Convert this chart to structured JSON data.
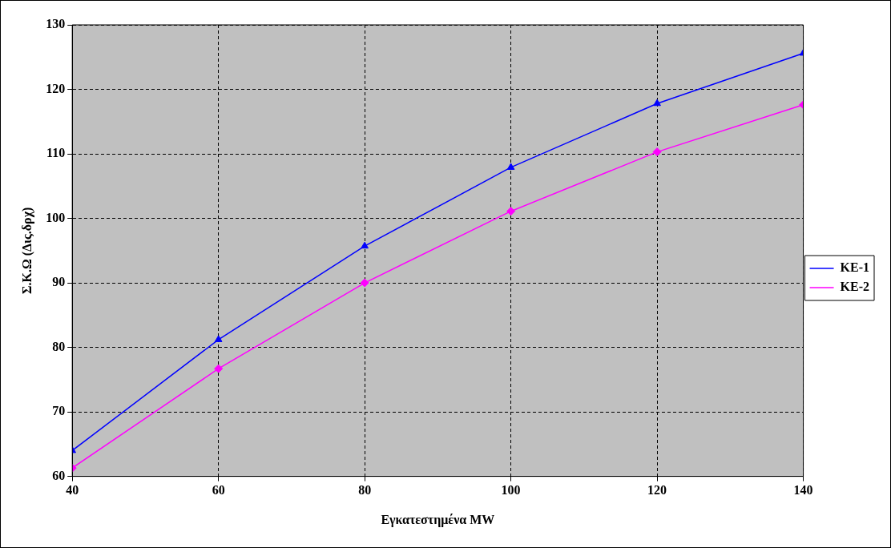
{
  "chart_data": {
    "type": "line",
    "xlabel": "Εγκατεστημένα MW",
    "ylabel": "Σ.Κ.Ω (Δις.δρχ)",
    "x": [
      40,
      60,
      80,
      100,
      120,
      140
    ],
    "series": [
      {
        "name": "KE-1",
        "color": "#0000ff",
        "marker": "triangle",
        "values": [
          64.0,
          81.2,
          95.7,
          107.9,
          117.8,
          125.6
        ]
      },
      {
        "name": "KE-2",
        "color": "#ff00ff",
        "marker": "diamond",
        "values": [
          61.3,
          76.7,
          90.0,
          101.1,
          110.3,
          117.6
        ]
      }
    ],
    "xlim": [
      40,
      140
    ],
    "xticks": [
      40,
      60,
      80,
      100,
      120,
      140
    ],
    "ylim": [
      60,
      130
    ],
    "yticks": [
      60,
      70,
      80,
      90,
      100,
      110,
      120,
      130
    ],
    "grid": true,
    "legend": "right",
    "line_style": "solid"
  }
}
